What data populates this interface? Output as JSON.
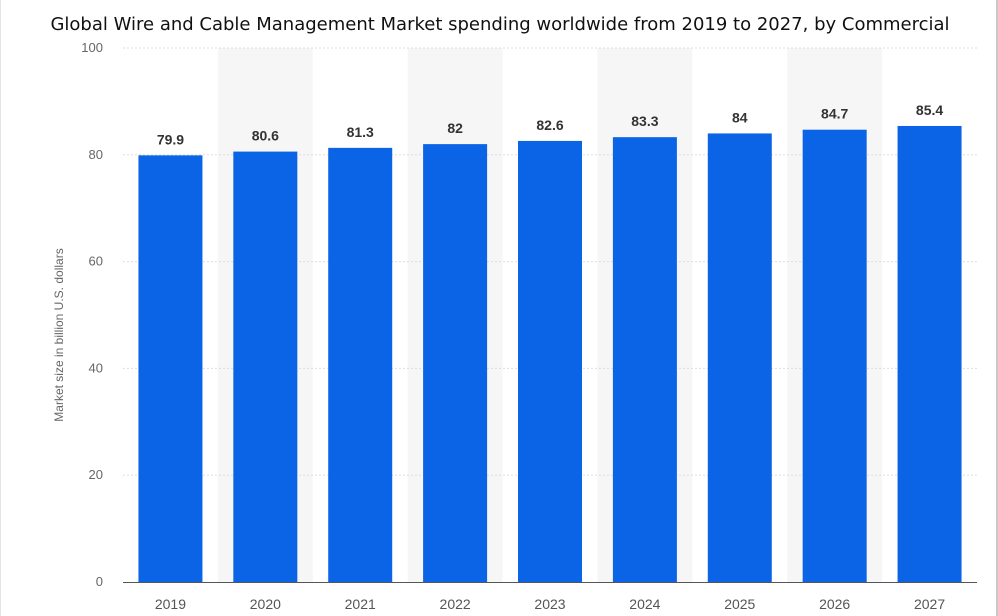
{
  "chart_data": {
    "type": "bar",
    "title": "Global Wire and Cable Management Market spending worldwide from 2019 to 2027, by Commercial",
    "xlabel": "",
    "ylabel": "Market size in billion U.S. dollars",
    "categories": [
      "2019",
      "2020",
      "2021",
      "2022",
      "2023",
      "2024",
      "2025",
      "2026",
      "2027"
    ],
    "values": [
      79.9,
      80.6,
      81.3,
      82,
      82.6,
      83.3,
      84,
      84.7,
      85.4
    ],
    "data_labels": [
      "79.9",
      "80.6",
      "81.3",
      "82",
      "82.6",
      "83.3",
      "84",
      "84.7",
      "85.4"
    ],
    "ylim": [
      0,
      100
    ],
    "yticks": [
      0,
      20,
      40,
      60,
      80,
      100
    ],
    "ytick_labels": [
      "0",
      "20",
      "40",
      "60",
      "80",
      "100"
    ],
    "grid": true,
    "legend": "none",
    "colors": {
      "bar": "#0b63e5",
      "band": "#f6f6f6",
      "grid": "#dddddd",
      "axis": "#555555"
    }
  }
}
